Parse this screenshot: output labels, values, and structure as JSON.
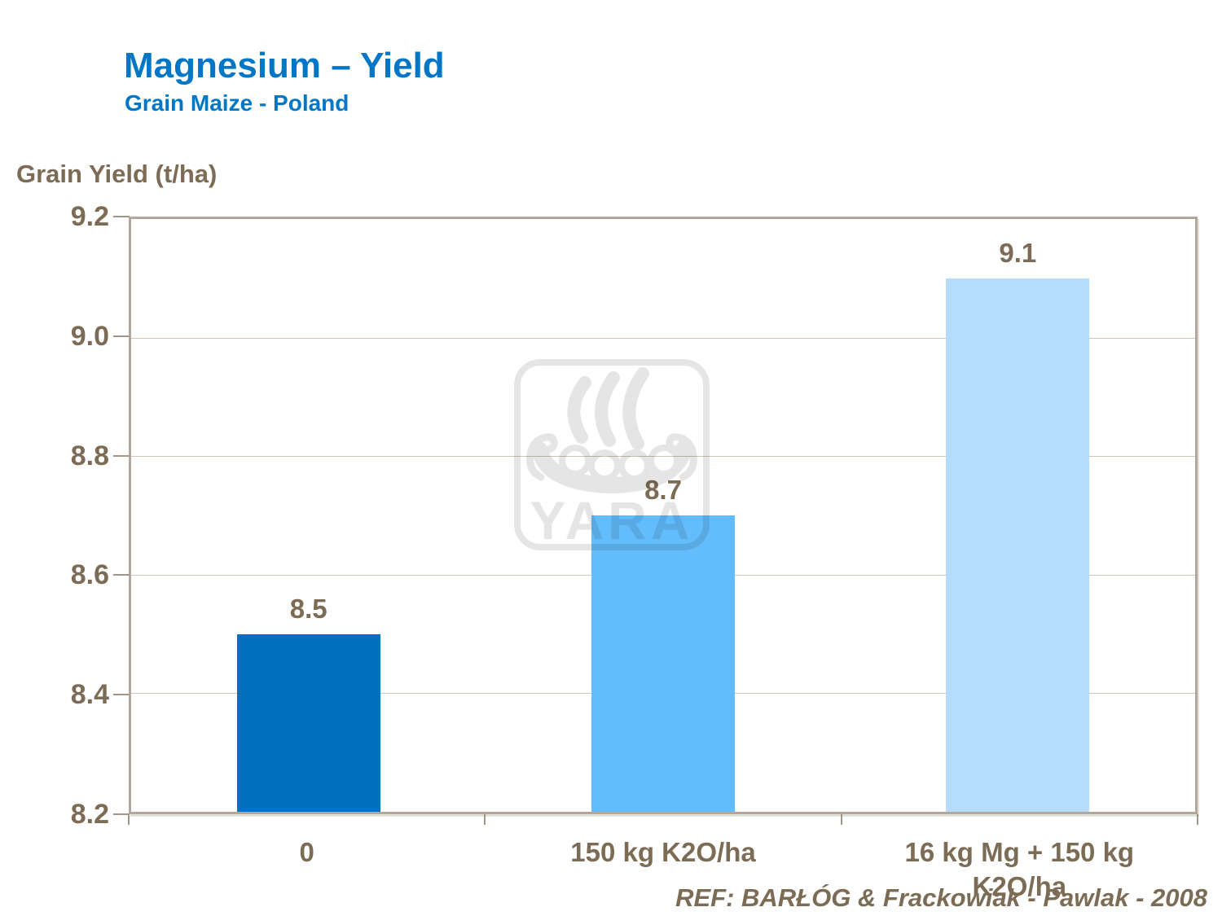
{
  "slide": {
    "title": "Magnesium – Yield",
    "subtitle": "Grain Maize - Poland"
  },
  "chart_data": {
    "type": "bar",
    "title": "Magnesium – Yield",
    "subtitle": "Grain Maize - Poland",
    "ylabel": "Grain Yield (t/ha)",
    "xlabel": "",
    "categories": [
      "0",
      "150 kg K2O/ha",
      "16 kg Mg + 150 kg K2O/ha"
    ],
    "values": [
      8.5,
      8.7,
      9.1
    ],
    "value_labels": [
      "8.5",
      "8.7",
      "9.1"
    ],
    "bar_colors": [
      "#0071BE",
      "#63BDFC",
      "#B6DCFC"
    ],
    "ylim": [
      8.2,
      9.2
    ],
    "yticks": [
      9.2,
      9.0,
      8.8,
      8.6,
      8.4,
      8.2
    ],
    "ytick_labels": [
      "9.2",
      "9.0",
      "8.8",
      "8.6",
      "8.4",
      "8.2"
    ],
    "grid": true,
    "legend": false
  },
  "footer": {
    "reference": "REF:  BARŁÓG & Frackowiak - Pawlak - 2008"
  },
  "watermark": {
    "name": "yara-logo",
    "text": "YARA",
    "color": "#E5E5E5"
  },
  "colors": {
    "title_blue": "#0077C6",
    "text_brown": "#7D6C55",
    "gridline": "#CDC3B6",
    "plot_border": "#B2A79A",
    "tick": "#A2968A"
  }
}
